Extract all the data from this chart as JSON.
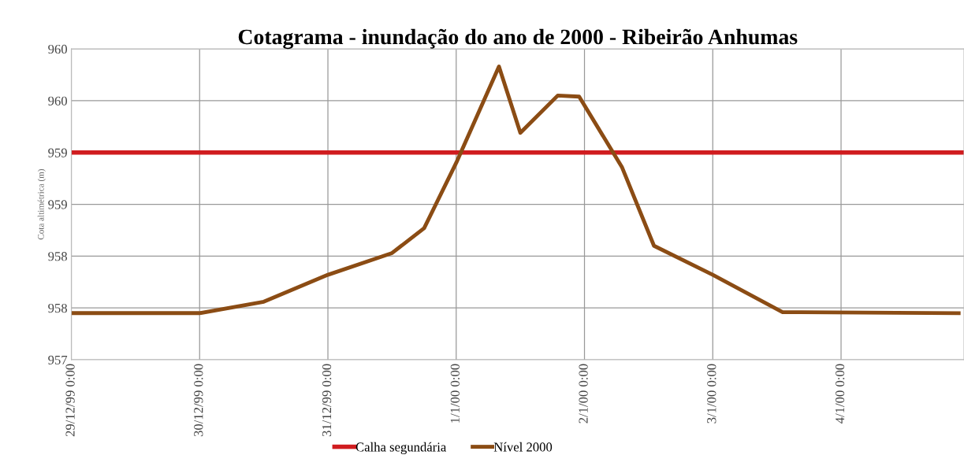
{
  "chart_data": {
    "type": "line",
    "title": "Cotagrama - inundação do ano de 2000 - Ribeirão Anhumas",
    "ylabel": "Cota altimétrica (m)",
    "x": [
      "1999-12-29T00:00",
      "1999-12-30T00:00",
      "1999-12-30T12:00",
      "1999-12-31T00:00",
      "1999-12-31T12:00",
      "1999-12-31T18:00",
      "2000-01-01T00:00",
      "2000-01-01T08:00",
      "2000-01-01T12:00",
      "2000-01-01T19:00",
      "2000-01-01T23:00",
      "2000-01-02T07:00",
      "2000-01-02T13:00",
      "2000-01-03T00:00",
      "2000-01-03T13:00",
      "2000-01-04T22:00"
    ],
    "series": [
      {
        "name": "Calha segundária",
        "color": "#d01c1f",
        "x": [
          "1999-12-29T00:00",
          "2000-01-04T23:00"
        ],
        "values": [
          959.0,
          959.0
        ]
      },
      {
        "name": "Nível 2000",
        "color": "#8b4c14",
        "values": [
          957.45,
          957.45,
          957.56,
          957.82,
          958.03,
          958.27,
          958.9,
          959.83,
          959.19,
          959.55,
          959.54,
          958.86,
          958.1,
          957.82,
          957.46,
          957.45
        ]
      }
    ],
    "xlim": [
      "1999-12-29T00:00",
      "2000-01-04T23:00"
    ],
    "xticks": [
      {
        "value": "1999-12-29T00:00",
        "label": "29/12/99 0:00"
      },
      {
        "value": "1999-12-30T00:00",
        "label": "30/12/99 0:00"
      },
      {
        "value": "1999-12-31T00:00",
        "label": "31/12/99 0:00"
      },
      {
        "value": "2000-01-01T00:00",
        "label": "1/1/00 0:00"
      },
      {
        "value": "2000-01-02T00:00",
        "label": "2/1/00 0:00"
      },
      {
        "value": "2000-01-03T00:00",
        "label": "3/1/00 0:00"
      },
      {
        "value": "2000-01-04T00:00",
        "label": "4/1/00 0:00"
      }
    ],
    "ylim": [
      957,
      960
    ],
    "yticks": [
      957,
      {
        "value": 957.5,
        "label": "958"
      },
      958,
      {
        "value": 958.5,
        "label": "959"
      },
      959,
      {
        "value": 959.5,
        "label": "960"
      },
      960
    ],
    "grid": true,
    "legend": "bottom",
    "marker": "none",
    "line_style": "solid"
  }
}
